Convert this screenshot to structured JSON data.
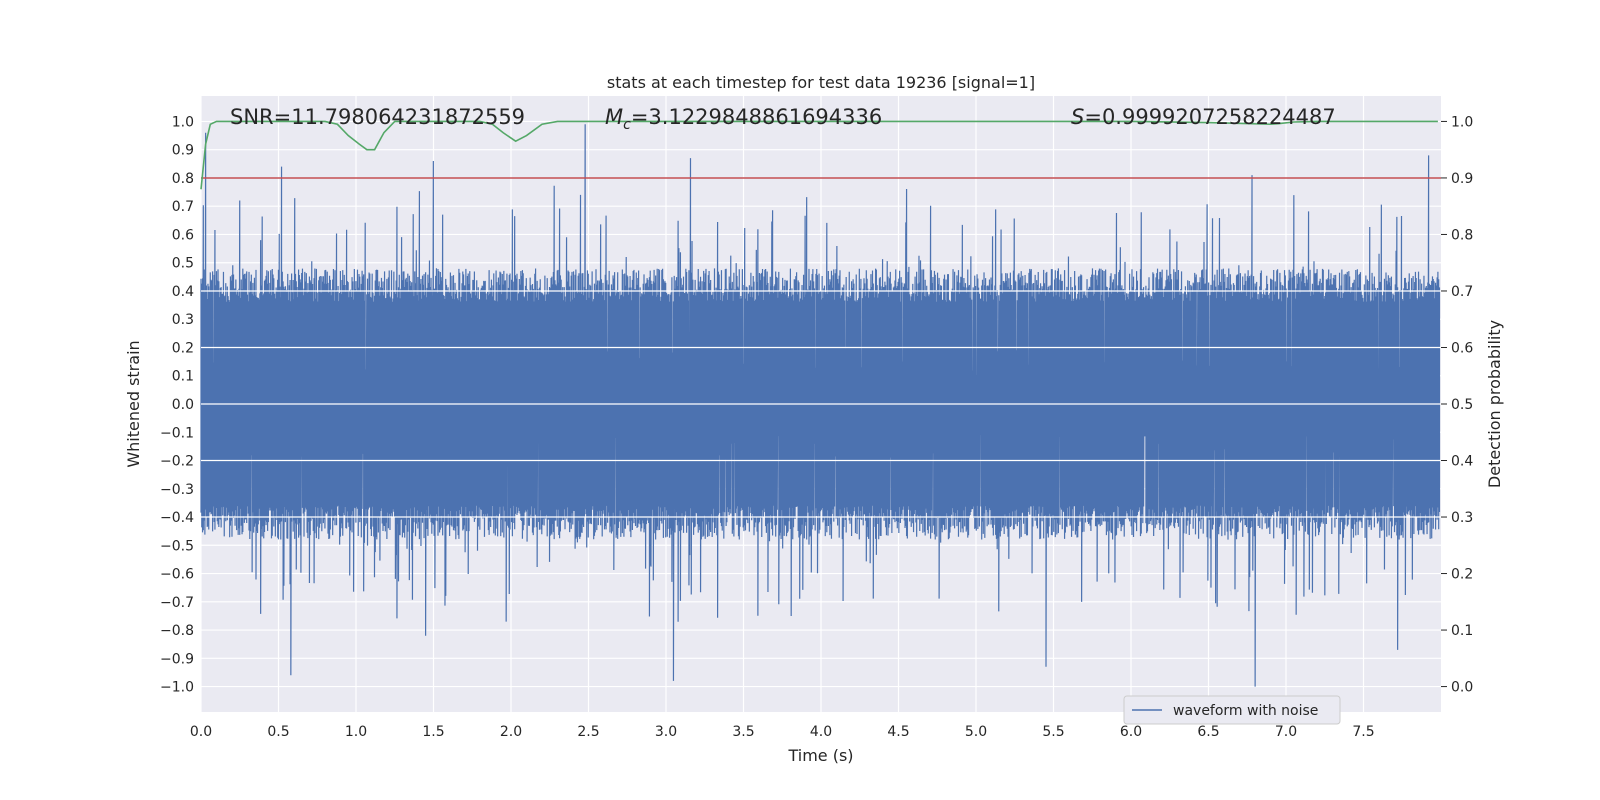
{
  "chart_data": {
    "type": "line",
    "title": "stats at each timestep for test data 19236 [signal=1]",
    "xlabel": "Time (s)",
    "ylabel": "Whitened strain",
    "y2label": "Detection probability",
    "xlim": [
      0.0,
      8.0
    ],
    "ylim": [
      -1.09,
      1.09
    ],
    "y2lim": [
      -0.045,
      1.045
    ],
    "xticks": [
      "0.0",
      "0.5",
      "1.0",
      "1.5",
      "2.0",
      "2.5",
      "3.0",
      "3.5",
      "4.0",
      "4.5",
      "5.0",
      "5.5",
      "6.0",
      "6.5",
      "7.0",
      "7.5"
    ],
    "yticks": [
      "1.0",
      "0.9",
      "0.8",
      "0.7",
      "0.6",
      "0.5",
      "0.4",
      "0.3",
      "0.2",
      "0.1",
      "0.0",
      "−0.1",
      "−0.2",
      "−0.3",
      "−0.4",
      "−0.5",
      "−0.6",
      "−0.7",
      "−0.8",
      "−0.9",
      "−1.0"
    ],
    "y2ticks": [
      "1.0",
      "0.9",
      "0.8",
      "0.7",
      "0.6",
      "0.5",
      "0.4",
      "0.3",
      "0.2",
      "0.1",
      "0.0"
    ],
    "grid": true,
    "legend_position": "lower-right",
    "annotations": {
      "snr": "SNR=11.798064231872559",
      "mc_symbol": "M",
      "mc_subscript": "c",
      "mc_value": "=3.1229848861694336",
      "s_symbol": "S",
      "s_value": "=0.9999207258224487"
    },
    "series": [
      {
        "name": "waveform with noise",
        "color": "#4c72b0",
        "axis": "left",
        "kind": "noise-waveform",
        "sample_count": 1600,
        "typical_max": 0.45,
        "typical_min": -0.45,
        "peaks": [
          [
            0.03,
            0.96
          ],
          [
            0.52,
            0.84
          ],
          [
            1.5,
            0.86
          ],
          [
            2.48,
            0.99
          ],
          [
            3.16,
            0.87
          ],
          [
            6.78,
            0.81
          ],
          [
            7.92,
            0.88
          ]
        ],
        "troughs": [
          [
            0.58,
            -0.96
          ],
          [
            1.45,
            -0.82
          ],
          [
            3.05,
            -0.98
          ],
          [
            5.45,
            -0.93
          ],
          [
            6.8,
            -1.0
          ],
          [
            7.72,
            -0.87
          ]
        ]
      },
      {
        "color": "#c44e52",
        "axis": "right",
        "kind": "hline",
        "value": 0.9
      },
      {
        "color": "#55a868",
        "axis": "right",
        "kind": "line",
        "x": [
          0.0,
          0.03,
          0.06,
          0.1,
          0.2,
          0.3,
          0.5,
          0.8,
          0.88,
          0.95,
          1.02,
          1.07,
          1.12,
          1.18,
          1.25,
          1.5,
          1.8,
          1.88,
          1.95,
          2.03,
          2.1,
          2.2,
          2.3,
          2.5,
          4.0,
          5.0,
          6.0,
          6.5,
          6.9,
          6.95,
          7.05,
          7.2,
          7.5,
          7.98
        ],
        "y": [
          0.88,
          0.96,
          0.995,
          1.0,
          1.0,
          1.0,
          1.0,
          1.0,
          0.995,
          0.975,
          0.96,
          0.95,
          0.95,
          0.98,
          1.0,
          1.0,
          1.0,
          0.995,
          0.98,
          0.965,
          0.975,
          0.995,
          1.0,
          1.0,
          1.0,
          1.0,
          1.0,
          0.998,
          0.995,
          0.996,
          0.999,
          1.0,
          1.0,
          1.0
        ]
      }
    ]
  }
}
